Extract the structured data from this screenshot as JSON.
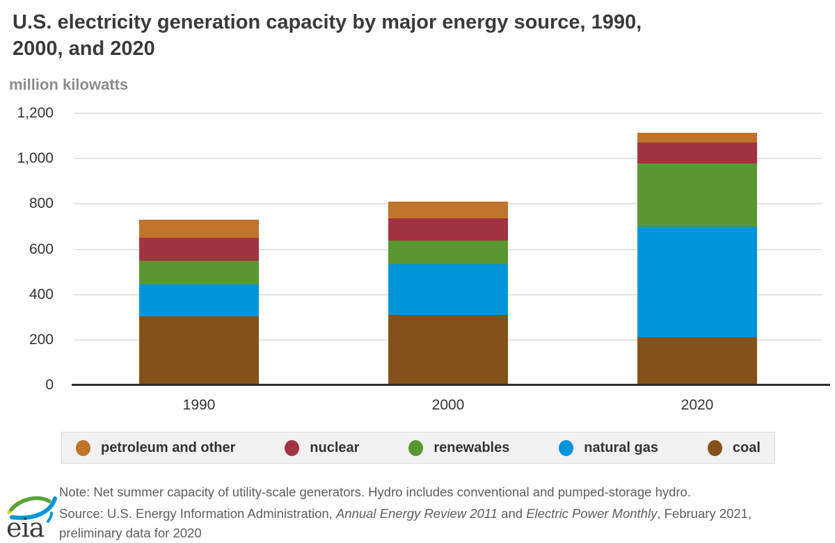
{
  "title": {
    "line1": "U.S. electricity generation capacity by major energy source, 1990,",
    "line2": "2000, and 2020"
  },
  "units_label": "million kilowatts",
  "chart_data": {
    "type": "bar",
    "stacked": true,
    "title": "U.S. electricity generation capacity by major energy source, 1990, 2000, and 2020",
    "ylabel": "million kilowatts",
    "xlabel": "",
    "categories": [
      "1990",
      "2000",
      "2020"
    ],
    "series": [
      {
        "name": "coal",
        "color": "#85511b",
        "values": [
          305,
          310,
          212
        ]
      },
      {
        "name": "natural gas",
        "color": "#0095d8",
        "values": [
          140,
          225,
          488
        ]
      },
      {
        "name": "renewables",
        "color": "#5a9632",
        "values": [
          104,
          104,
          279
        ]
      },
      {
        "name": "nuclear",
        "color": "#a23342",
        "values": [
          101,
          99,
          92
        ]
      },
      {
        "name": "petroleum and other",
        "color": "#bf732b",
        "values": [
          80,
          72,
          44
        ]
      }
    ],
    "ylim": [
      0,
      1200
    ],
    "ytick_step": 200,
    "ytick_labels": [
      "0",
      "200",
      "400",
      "600",
      "800",
      "1,000",
      "1,200"
    ],
    "grid": true,
    "legend_position": "bottom"
  },
  "legend": {
    "items": [
      {
        "label": "petroleum and other",
        "color": "#bf732b"
      },
      {
        "label": "nuclear",
        "color": "#a23342"
      },
      {
        "label": "renewables",
        "color": "#5a9632"
      },
      {
        "label": "natural gas",
        "color": "#0095d8"
      },
      {
        "label": "coal",
        "color": "#85511b"
      }
    ]
  },
  "footer": {
    "note": "Note: Net summer capacity of utility-scale generators. Hydro includes conventional and pumped-storage hydro.",
    "source_parts": [
      {
        "text": "Source: U.S. Energy Information Administration, ",
        "italic": false
      },
      {
        "text": "Annual Energy Review 2011",
        "italic": true
      },
      {
        "text": " and ",
        "italic": false
      },
      {
        "text": "Electric Power Monthly",
        "italic": true
      },
      {
        "text": ", February 2021,",
        "italic": false
      },
      {
        "break": true
      },
      {
        "text": "preliminary data for 2020",
        "italic": false
      }
    ],
    "logo_text": "eia"
  },
  "colors": {
    "title_text": "#3a3a3a",
    "units_text": "#8c8c8c",
    "tick_text": "#333333",
    "gridline": "#e4e4e4",
    "axis_line": "#2e2e2e",
    "legend_bg": "#f1f1f1",
    "legend_border": "#dcdcdc",
    "footnote_text": "#5d5d5d",
    "background": "#ffffff",
    "logo_green": "#58a33a",
    "logo_yellow": "#f5c918",
    "logo_blue": "#0096d7"
  }
}
